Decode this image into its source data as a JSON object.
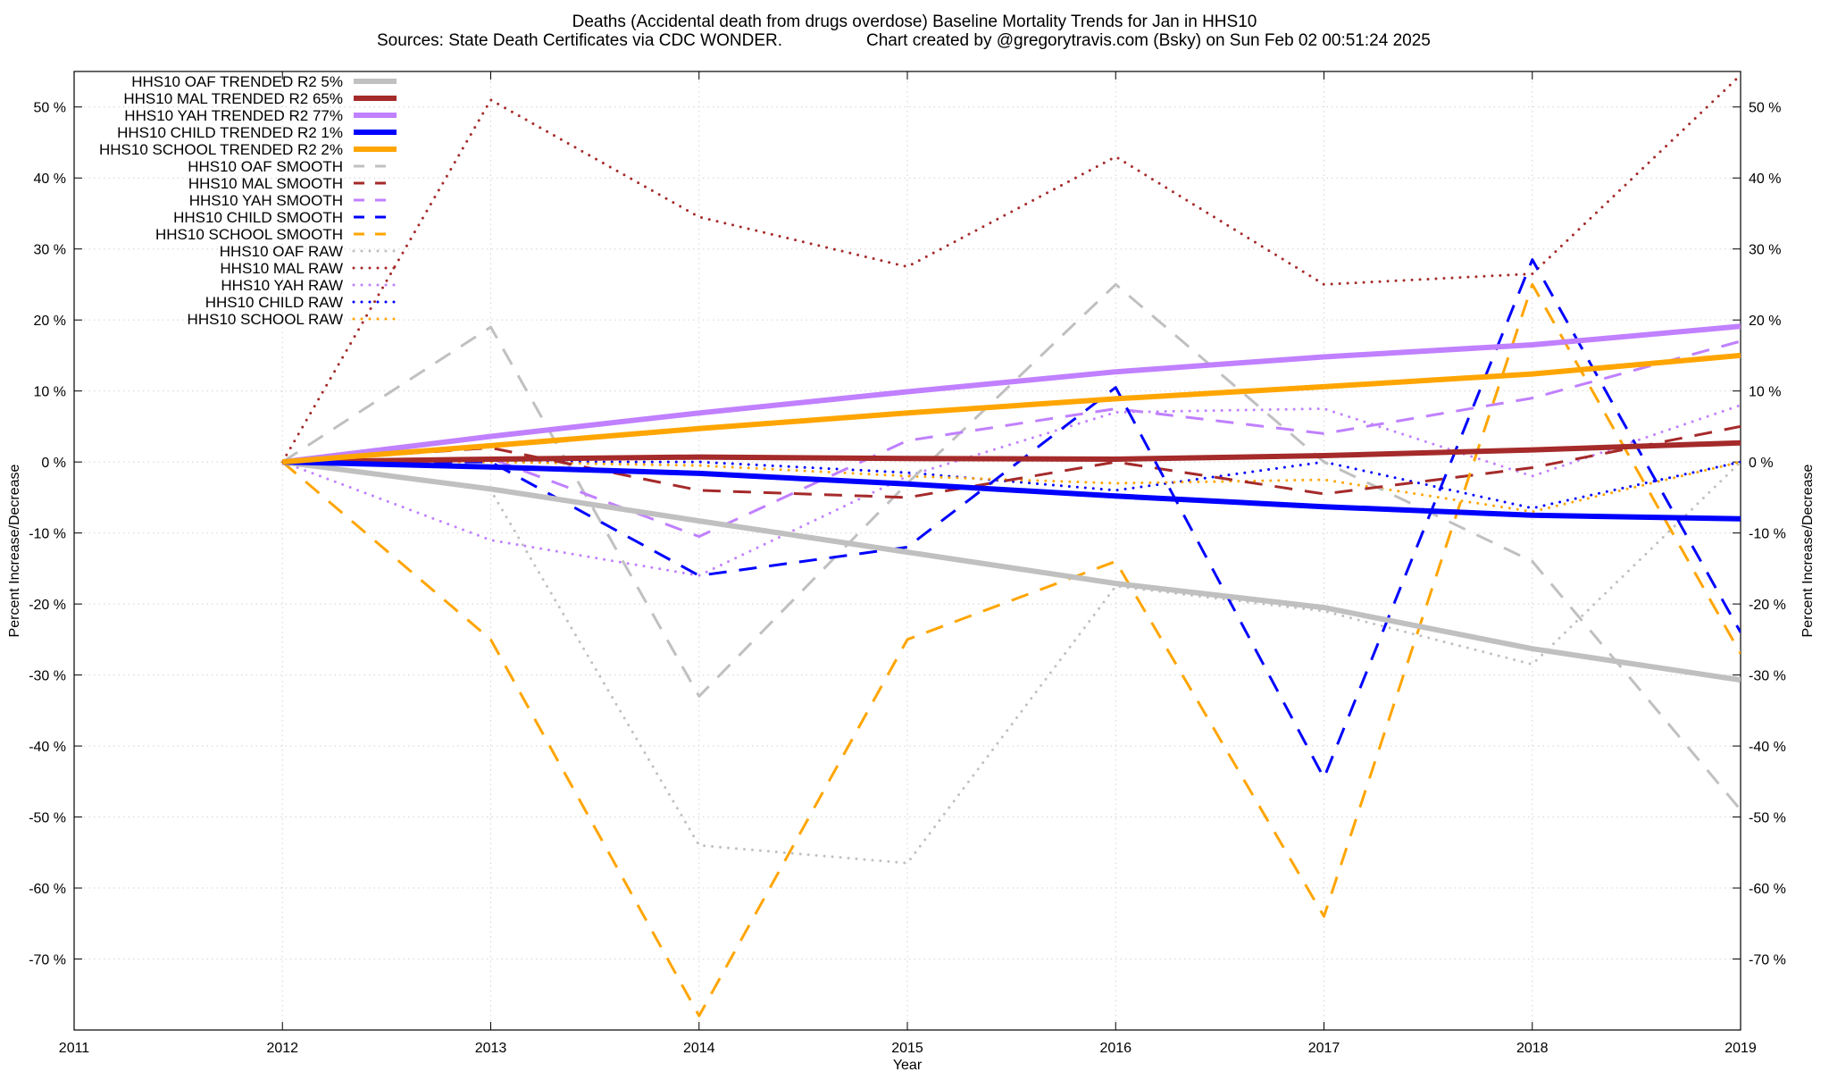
{
  "chart_data": {
    "type": "line",
    "title": "Deaths (Accidental death from drugs overdose)  Baseline Mortality Trends for Jan in HHS10",
    "subtitle_left": "Sources: State Death Certificates via CDC WONDER.",
    "subtitle_right": "Chart created by @gregorytravis.com (Bsky) on Sun Feb 02 00:51:24 2025",
    "xlabel": "Year",
    "ylabel": "Percent Increase/Decrease",
    "y2label": "Percent Increase/Decrease",
    "xlim": [
      2011,
      2019
    ],
    "ylim": [
      -80,
      55
    ],
    "x_ticks": [
      "2011",
      "2012",
      "2013",
      "2014",
      "2015",
      "2016",
      "2017",
      "2018",
      "2019"
    ],
    "y_ticks": [
      {
        "value": 50,
        "label": "50 %"
      },
      {
        "value": 40,
        "label": "40 %"
      },
      {
        "value": 30,
        "label": "30 %"
      },
      {
        "value": 20,
        "label": "20 %"
      },
      {
        "value": 10,
        "label": "10 %"
      },
      {
        "value": 0,
        "label": "0 %"
      },
      {
        "value": -10,
        "label": "-10 %"
      },
      {
        "value": -20,
        "label": "-20 %"
      },
      {
        "value": -30,
        "label": "-30 %"
      },
      {
        "value": -40,
        "label": "-40 %"
      },
      {
        "value": -50,
        "label": "-50 %"
      },
      {
        "value": -60,
        "label": "-60 %"
      },
      {
        "value": -70,
        "label": "-70 %"
      }
    ],
    "grid": true,
    "legend_position": "top-left",
    "series": [
      {
        "name": "HHS10 OAF TRENDED R2  5%",
        "style": "solid",
        "color": "#c0c0c0",
        "x": [
          2012,
          2013,
          2014,
          2015,
          2016,
          2017,
          2018,
          2019
        ],
        "y": [
          0,
          -3.8,
          -8.3,
          -12.7,
          -17.1,
          -20.5,
          -26.3,
          -30.7
        ]
      },
      {
        "name": "HHS10 MAL TRENDED R2  65%",
        "style": "solid",
        "color": "#a52a2a",
        "x": [
          2012,
          2013,
          2014,
          2015,
          2016,
          2017,
          2018,
          2019
        ],
        "y": [
          0,
          0.4,
          0.7,
          0.5,
          0.4,
          0.9,
          1.7,
          2.7
        ]
      },
      {
        "name": "HHS10 YAH TRENDED R2  77%",
        "style": "solid",
        "color": "#c080ff",
        "x": [
          2012,
          2013,
          2014,
          2015,
          2016,
          2017,
          2018,
          2019
        ],
        "y": [
          0,
          3.6,
          6.9,
          9.9,
          12.7,
          14.8,
          16.5,
          19.1
        ]
      },
      {
        "name": "HHS10 CHILD TRENDED R2  1%",
        "style": "solid",
        "color": "#0000ff",
        "x": [
          2012,
          2013,
          2014,
          2015,
          2016,
          2017,
          2018,
          2019
        ],
        "y": [
          0,
          -0.7,
          -1.6,
          -3.1,
          -4.8,
          -6.3,
          -7.5,
          -8.0
        ]
      },
      {
        "name": "HHS10 SCHOOL TRENDED R2  2%",
        "style": "solid",
        "color": "#ffa500",
        "x": [
          2012,
          2013,
          2014,
          2015,
          2016,
          2017,
          2018,
          2019
        ],
        "y": [
          0,
          2.3,
          4.7,
          6.9,
          8.9,
          10.6,
          12.4,
          15.0
        ]
      },
      {
        "name": "HHS10 OAF SMOOTH",
        "style": "dash",
        "color": "#c0c0c0",
        "x": [
          2012,
          2013,
          2014,
          2015,
          2016,
          2017,
          2018,
          2019
        ],
        "y": [
          0,
          19,
          -33,
          -3,
          25,
          0,
          -14,
          -49
        ]
      },
      {
        "name": "HHS10 MAL SMOOTH",
        "style": "dash",
        "color": "#a52a2a",
        "x": [
          2012,
          2013,
          2014,
          2015,
          2016,
          2017,
          2018,
          2019
        ],
        "y": [
          0,
          2,
          -4,
          -5,
          0,
          -4.5,
          -0.8,
          5
        ]
      },
      {
        "name": "HHS10 YAH SMOOTH",
        "style": "dash",
        "color": "#c080ff",
        "x": [
          2012,
          2013,
          2014,
          2015,
          2016,
          2017,
          2018,
          2019
        ],
        "y": [
          0,
          0.5,
          -10.5,
          3,
          7.5,
          4,
          9,
          17
        ]
      },
      {
        "name": "HHS10 CHILD SMOOTH",
        "style": "dash",
        "color": "#0000ff",
        "x": [
          2012,
          2013,
          2014,
          2015,
          2016,
          2017,
          2018,
          2019
        ],
        "y": [
          0,
          0,
          -16,
          -12,
          10.5,
          -44.5,
          28.5,
          -24
        ]
      },
      {
        "name": "HHS10 SCHOOL SMOOTH",
        "style": "dash",
        "color": "#ffa500",
        "x": [
          2012,
          2013,
          2014,
          2015,
          2016,
          2017,
          2018,
          2019
        ],
        "y": [
          0,
          -25,
          -78,
          -25,
          -14,
          -64,
          25,
          -27
        ]
      },
      {
        "name": "HHS10 OAF RAW",
        "style": "dot",
        "color": "#c0c0c0",
        "x": [
          2012,
          2013,
          2014,
          2015,
          2016,
          2017,
          2018,
          2019
        ],
        "y": [
          0,
          -4,
          -54,
          -56.5,
          -17.5,
          -21,
          -28.5,
          0
        ]
      },
      {
        "name": "HHS10 MAL RAW",
        "style": "dot",
        "color": "#a52a2a",
        "x": [
          2012,
          2013,
          2014,
          2015,
          2016,
          2017,
          2018,
          2019
        ],
        "y": [
          0,
          51,
          34.5,
          27.5,
          43,
          25,
          26.5,
          54.5
        ]
      },
      {
        "name": "HHS10 YAH RAW",
        "style": "dot",
        "color": "#c080ff",
        "x": [
          2012,
          2013,
          2014,
          2015,
          2016,
          2017,
          2018,
          2019
        ],
        "y": [
          0,
          -11,
          -16,
          -2,
          7,
          7.5,
          -2,
          8
        ]
      },
      {
        "name": "HHS10 CHILD RAW",
        "style": "dot",
        "color": "#0000ff",
        "x": [
          2012,
          2013,
          2014,
          2015,
          2016,
          2017,
          2018,
          2019
        ],
        "y": [
          0,
          0,
          0,
          -1.5,
          -4,
          0,
          -6.5,
          0
        ]
      },
      {
        "name": "HHS10 SCHOOL RAW",
        "style": "dot",
        "color": "#ffa500",
        "x": [
          2012,
          2013,
          2014,
          2015,
          2016,
          2017,
          2018,
          2019
        ],
        "y": [
          0,
          0,
          -0.5,
          -2,
          -3,
          -2.5,
          -7,
          0
        ]
      }
    ]
  }
}
